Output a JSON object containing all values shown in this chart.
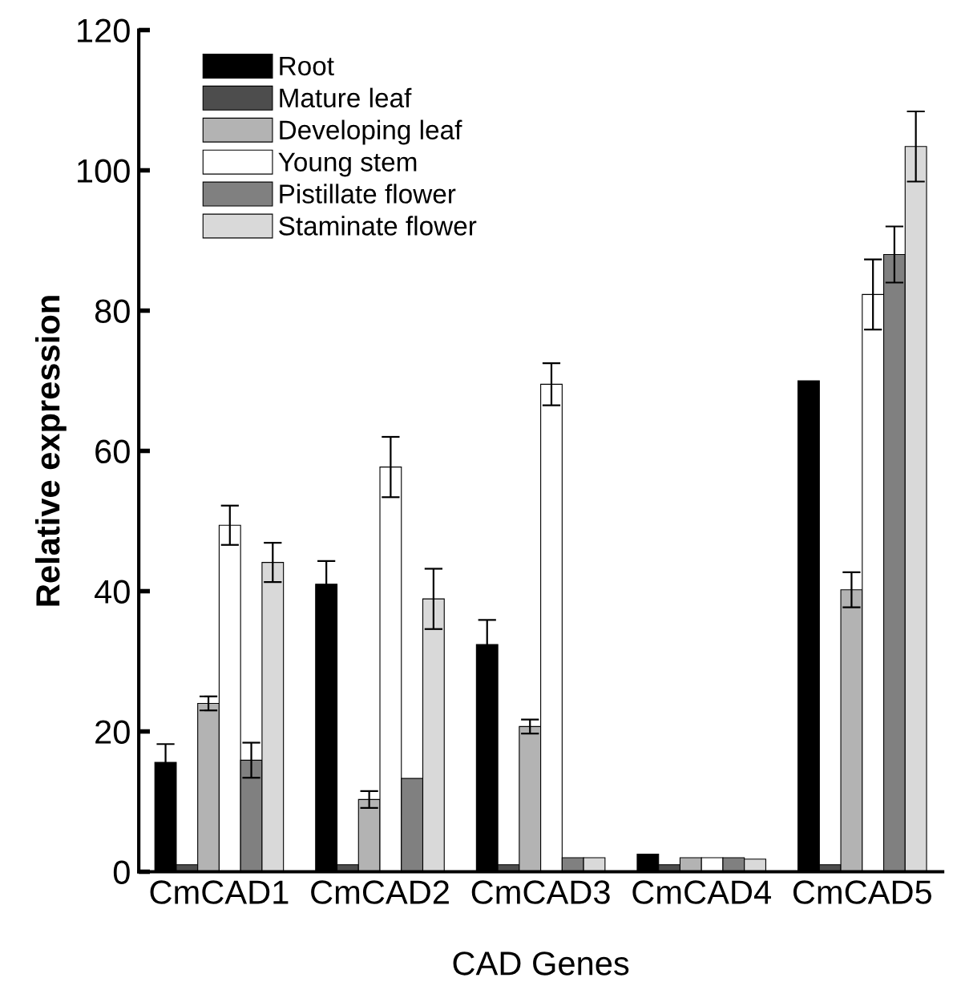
{
  "chart_data": {
    "type": "bar",
    "xlabel": "CAD Genes",
    "ylabel": "Relative expression",
    "categories": [
      "CmCAD1",
      "CmCAD2",
      "CmCAD3",
      "CmCAD4",
      "CmCAD5"
    ],
    "ylim": [
      0,
      120
    ],
    "yticks": [
      0,
      20,
      40,
      60,
      80,
      100,
      120
    ],
    "grid": false,
    "legend": "top left",
    "series": [
      {
        "name": "Root",
        "color": "#000000",
        "values": [
          15.6,
          41,
          32.4,
          2.5,
          70
        ],
        "errors": [
          2.6,
          3.3,
          3.5,
          null,
          null
        ]
      },
      {
        "name": "Mature leaf",
        "color": "#4d4d4d",
        "values": [
          1,
          1,
          1,
          1,
          1
        ],
        "errors": [
          null,
          null,
          null,
          null,
          null
        ]
      },
      {
        "name": "Developing leaf",
        "color": "#b3b3b3",
        "values": [
          24,
          10.3,
          20.7,
          2,
          40.2
        ],
        "errors": [
          1,
          1.2,
          1,
          null,
          2.5
        ]
      },
      {
        "name": "Young stem",
        "color": "#ffffff",
        "values": [
          49.4,
          57.7,
          69.5,
          2,
          82.3
        ],
        "errors": [
          2.8,
          4.3,
          3,
          null,
          5
        ]
      },
      {
        "name": "Pistillate flower",
        "color": "#808080",
        "values": [
          15.9,
          13.3,
          2,
          2,
          88
        ],
        "errors": [
          2.5,
          null,
          null,
          null,
          4
        ]
      },
      {
        "name": "Staminate flower",
        "color": "#d9d9d9",
        "values": [
          44.1,
          38.9,
          2,
          1.8,
          103.4
        ],
        "errors": [
          2.8,
          4.3,
          null,
          null,
          5
        ]
      }
    ]
  }
}
